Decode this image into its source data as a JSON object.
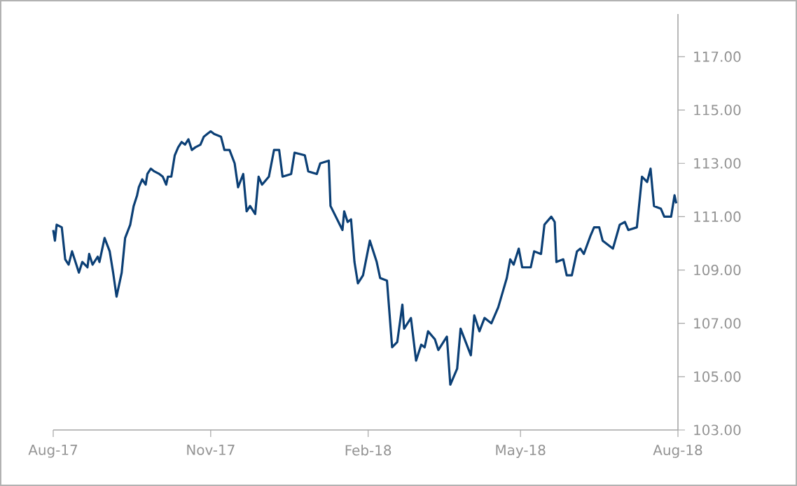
{
  "chart_data": {
    "type": "line",
    "x": [
      "2017-08-01",
      "2017-08-02",
      "2017-08-03",
      "2017-08-06",
      "2017-08-08",
      "2017-08-10",
      "2017-08-12",
      "2017-08-16",
      "2017-08-18",
      "2017-08-21",
      "2017-08-22",
      "2017-08-24",
      "2017-08-27",
      "2017-08-28",
      "2017-08-31",
      "2017-09-03",
      "2017-09-05",
      "2017-09-07",
      "2017-09-10",
      "2017-09-12",
      "2017-09-15",
      "2017-09-17",
      "2017-09-19",
      "2017-09-20",
      "2017-09-22",
      "2017-09-24",
      "2017-09-25",
      "2017-09-27",
      "2017-09-29",
      "2017-10-02",
      "2017-10-04",
      "2017-10-06",
      "2017-10-07",
      "2017-10-09",
      "2017-10-11",
      "2017-10-13",
      "2017-10-15",
      "2017-10-17",
      "2017-10-19",
      "2017-10-21",
      "2017-10-23",
      "2017-10-26",
      "2017-10-28",
      "2017-10-30",
      "2017-11-01",
      "2017-11-03",
      "2017-11-07",
      "2017-11-09",
      "2017-11-12",
      "2017-11-15",
      "2017-11-17",
      "2017-11-20",
      "2017-11-22",
      "2017-11-24",
      "2017-11-27",
      "2017-11-29",
      "2017-12-01",
      "2017-12-05",
      "2017-12-08",
      "2017-12-11",
      "2017-12-13",
      "2017-12-18",
      "2017-12-20",
      "2017-12-26",
      "2017-12-28",
      "2018-01-02",
      "2018-01-04",
      "2018-01-09",
      "2018-01-10",
      "2018-01-17",
      "2018-01-18",
      "2018-01-20",
      "2018-01-22",
      "2018-01-24",
      "2018-01-26",
      "2018-01-29",
      "2018-02-02",
      "2018-02-06",
      "2018-02-08",
      "2018-02-12",
      "2018-02-15",
      "2018-02-18",
      "2018-02-21",
      "2018-02-22",
      "2018-02-26",
      "2018-03-01",
      "2018-03-04",
      "2018-03-06",
      "2018-03-08",
      "2018-03-12",
      "2018-03-14",
      "2018-03-19",
      "2018-03-21",
      "2018-03-25",
      "2018-03-27",
      "2018-04-02",
      "2018-04-04",
      "2018-04-07",
      "2018-04-10",
      "2018-04-14",
      "2018-04-18",
      "2018-04-23",
      "2018-04-25",
      "2018-04-27",
      "2018-04-30",
      "2018-05-02",
      "2018-05-07",
      "2018-05-09",
      "2018-05-13",
      "2018-05-15",
      "2018-05-19",
      "2018-05-21",
      "2018-05-22",
      "2018-05-26",
      "2018-05-28",
      "2018-05-31",
      "2018-06-03",
      "2018-06-05",
      "2018-06-07",
      "2018-06-11",
      "2018-06-13",
      "2018-06-16",
      "2018-06-18",
      "2018-06-24",
      "2018-06-28",
      "2018-07-01",
      "2018-07-03",
      "2018-07-08",
      "2018-07-11",
      "2018-07-14",
      "2018-07-16",
      "2018-07-18",
      "2018-07-22",
      "2018-07-24",
      "2018-07-28",
      "2018-07-30",
      "2018-07-31"
    ],
    "series": [
      {
        "color": "#0b3f75",
        "values": [
          110.5,
          110.1,
          110.7,
          110.6,
          109.4,
          109.2,
          109.7,
          108.9,
          109.3,
          109.1,
          109.6,
          109.2,
          109.5,
          109.3,
          110.2,
          109.7,
          108.9,
          108.0,
          108.9,
          110.2,
          110.7,
          111.4,
          111.8,
          112.1,
          112.4,
          112.2,
          112.6,
          112.8,
          112.7,
          112.6,
          112.5,
          112.2,
          112.5,
          112.5,
          113.3,
          113.6,
          113.8,
          113.7,
          113.9,
          113.5,
          113.6,
          113.7,
          114.0,
          114.1,
          114.2,
          114.1,
          114.0,
          113.5,
          113.5,
          113.0,
          112.1,
          112.6,
          111.2,
          111.4,
          111.1,
          112.5,
          112.2,
          112.5,
          113.5,
          113.5,
          112.5,
          112.6,
          113.4,
          113.3,
          112.7,
          112.6,
          113.0,
          113.1,
          111.4,
          110.5,
          111.2,
          110.8,
          110.9,
          109.3,
          108.5,
          108.8,
          110.1,
          109.3,
          108.7,
          108.6,
          106.1,
          106.3,
          107.7,
          106.8,
          107.2,
          105.6,
          106.2,
          106.1,
          106.7,
          106.4,
          106.0,
          106.5,
          104.7,
          105.3,
          106.8,
          105.8,
          107.3,
          106.7,
          107.2,
          107.0,
          107.6,
          108.7,
          109.4,
          109.2,
          109.8,
          109.1,
          109.1,
          109.7,
          109.6,
          110.7,
          111.0,
          110.8,
          109.3,
          109.4,
          108.8,
          108.8,
          109.7,
          109.8,
          109.6,
          110.3,
          110.6,
          110.6,
          110.1,
          109.8,
          110.7,
          110.8,
          110.5,
          110.6,
          112.5,
          112.3,
          112.8,
          111.4,
          111.3,
          111.0,
          111.0,
          111.8,
          111.5
        ]
      }
    ],
    "xlim": [
      "2017-08-01",
      "2018-08-01"
    ],
    "xticks": [
      {
        "value": "2017-08-01",
        "label": "Aug-17"
      },
      {
        "value": "2017-11-01",
        "label": "Nov-17"
      },
      {
        "value": "2018-02-01",
        "label": "Feb-18"
      },
      {
        "value": "2018-05-01",
        "label": "May-18"
      },
      {
        "value": "2018-08-01",
        "label": "Aug-18"
      }
    ],
    "ylim": [
      103,
      118.6
    ],
    "yticks": [
      {
        "value": 103,
        "label": "103.00"
      },
      {
        "value": 105,
        "label": "105.00"
      },
      {
        "value": 107,
        "label": "107.00"
      },
      {
        "value": 109,
        "label": "109.00"
      },
      {
        "value": 111,
        "label": "111.00"
      },
      {
        "value": 113,
        "label": "113.00"
      },
      {
        "value": 115,
        "label": "115.00"
      },
      {
        "value": 117,
        "label": "117.00"
      }
    ],
    "grid": false,
    "marker": "none",
    "line_style": "solid"
  }
}
